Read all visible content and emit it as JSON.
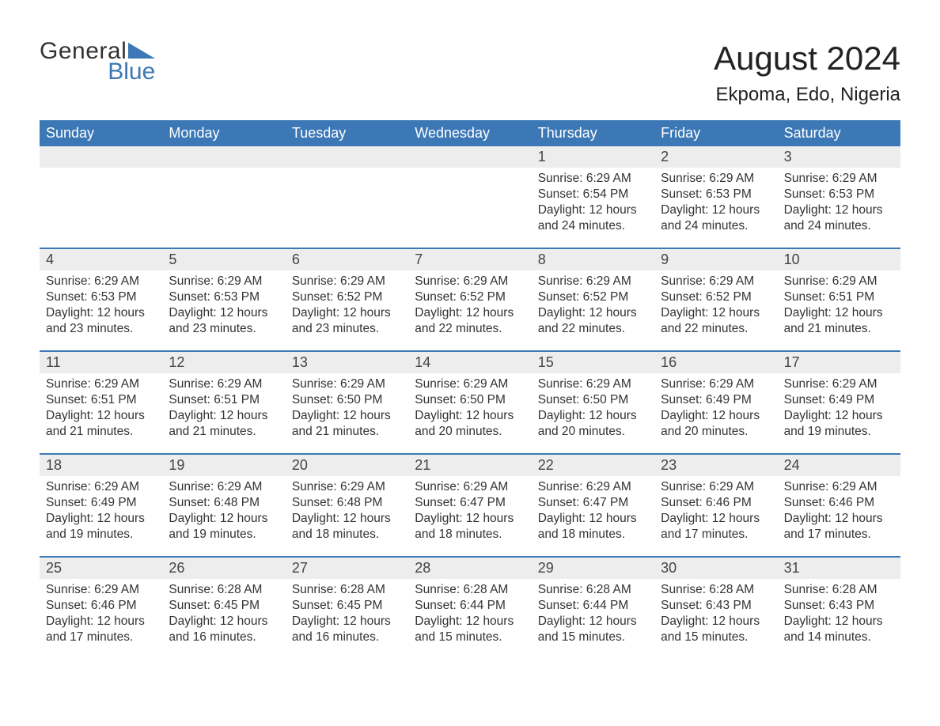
{
  "brand": {
    "word1": "General",
    "word2": "Blue",
    "word1_color": "#333333",
    "word2_color": "#3b78b5",
    "triangle_color": "#3b78b5"
  },
  "title": "August 2024",
  "location": "Ekpoma, Edo, Nigeria",
  "colors": {
    "header_bg": "#3b78b5",
    "header_text": "#ffffff",
    "row_divider": "#3b78b5",
    "daynum_bg": "#ededed",
    "body_text": "#333333",
    "page_bg": "#ffffff"
  },
  "layout": {
    "columns": 7,
    "rows": 5,
    "start_weekday": "Sunday"
  },
  "weekdays": [
    "Sunday",
    "Monday",
    "Tuesday",
    "Wednesday",
    "Thursday",
    "Friday",
    "Saturday"
  ],
  "labels": {
    "sunrise": "Sunrise",
    "sunset": "Sunset",
    "daylight": "Daylight"
  },
  "weeks": [
    [
      {
        "blank": true
      },
      {
        "blank": true
      },
      {
        "blank": true
      },
      {
        "blank": true
      },
      {
        "day": "1",
        "sunrise": "6:29 AM",
        "sunset": "6:54 PM",
        "daylight": "12 hours and 24 minutes."
      },
      {
        "day": "2",
        "sunrise": "6:29 AM",
        "sunset": "6:53 PM",
        "daylight": "12 hours and 24 minutes."
      },
      {
        "day": "3",
        "sunrise": "6:29 AM",
        "sunset": "6:53 PM",
        "daylight": "12 hours and 24 minutes."
      }
    ],
    [
      {
        "day": "4",
        "sunrise": "6:29 AM",
        "sunset": "6:53 PM",
        "daylight": "12 hours and 23 minutes."
      },
      {
        "day": "5",
        "sunrise": "6:29 AM",
        "sunset": "6:53 PM",
        "daylight": "12 hours and 23 minutes."
      },
      {
        "day": "6",
        "sunrise": "6:29 AM",
        "sunset": "6:52 PM",
        "daylight": "12 hours and 23 minutes."
      },
      {
        "day": "7",
        "sunrise": "6:29 AM",
        "sunset": "6:52 PM",
        "daylight": "12 hours and 22 minutes."
      },
      {
        "day": "8",
        "sunrise": "6:29 AM",
        "sunset": "6:52 PM",
        "daylight": "12 hours and 22 minutes."
      },
      {
        "day": "9",
        "sunrise": "6:29 AM",
        "sunset": "6:52 PM",
        "daylight": "12 hours and 22 minutes."
      },
      {
        "day": "10",
        "sunrise": "6:29 AM",
        "sunset": "6:51 PM",
        "daylight": "12 hours and 21 minutes."
      }
    ],
    [
      {
        "day": "11",
        "sunrise": "6:29 AM",
        "sunset": "6:51 PM",
        "daylight": "12 hours and 21 minutes."
      },
      {
        "day": "12",
        "sunrise": "6:29 AM",
        "sunset": "6:51 PM",
        "daylight": "12 hours and 21 minutes."
      },
      {
        "day": "13",
        "sunrise": "6:29 AM",
        "sunset": "6:50 PM",
        "daylight": "12 hours and 21 minutes."
      },
      {
        "day": "14",
        "sunrise": "6:29 AM",
        "sunset": "6:50 PM",
        "daylight": "12 hours and 20 minutes."
      },
      {
        "day": "15",
        "sunrise": "6:29 AM",
        "sunset": "6:50 PM",
        "daylight": "12 hours and 20 minutes."
      },
      {
        "day": "16",
        "sunrise": "6:29 AM",
        "sunset": "6:49 PM",
        "daylight": "12 hours and 20 minutes."
      },
      {
        "day": "17",
        "sunrise": "6:29 AM",
        "sunset": "6:49 PM",
        "daylight": "12 hours and 19 minutes."
      }
    ],
    [
      {
        "day": "18",
        "sunrise": "6:29 AM",
        "sunset": "6:49 PM",
        "daylight": "12 hours and 19 minutes."
      },
      {
        "day": "19",
        "sunrise": "6:29 AM",
        "sunset": "6:48 PM",
        "daylight": "12 hours and 19 minutes."
      },
      {
        "day": "20",
        "sunrise": "6:29 AM",
        "sunset": "6:48 PM",
        "daylight": "12 hours and 18 minutes."
      },
      {
        "day": "21",
        "sunrise": "6:29 AM",
        "sunset": "6:47 PM",
        "daylight": "12 hours and 18 minutes."
      },
      {
        "day": "22",
        "sunrise": "6:29 AM",
        "sunset": "6:47 PM",
        "daylight": "12 hours and 18 minutes."
      },
      {
        "day": "23",
        "sunrise": "6:29 AM",
        "sunset": "6:46 PM",
        "daylight": "12 hours and 17 minutes."
      },
      {
        "day": "24",
        "sunrise": "6:29 AM",
        "sunset": "6:46 PM",
        "daylight": "12 hours and 17 minutes."
      }
    ],
    [
      {
        "day": "25",
        "sunrise": "6:29 AM",
        "sunset": "6:46 PM",
        "daylight": "12 hours and 17 minutes."
      },
      {
        "day": "26",
        "sunrise": "6:28 AM",
        "sunset": "6:45 PM",
        "daylight": "12 hours and 16 minutes."
      },
      {
        "day": "27",
        "sunrise": "6:28 AM",
        "sunset": "6:45 PM",
        "daylight": "12 hours and 16 minutes."
      },
      {
        "day": "28",
        "sunrise": "6:28 AM",
        "sunset": "6:44 PM",
        "daylight": "12 hours and 15 minutes."
      },
      {
        "day": "29",
        "sunrise": "6:28 AM",
        "sunset": "6:44 PM",
        "daylight": "12 hours and 15 minutes."
      },
      {
        "day": "30",
        "sunrise": "6:28 AM",
        "sunset": "6:43 PM",
        "daylight": "12 hours and 15 minutes."
      },
      {
        "day": "31",
        "sunrise": "6:28 AM",
        "sunset": "6:43 PM",
        "daylight": "12 hours and 14 minutes."
      }
    ]
  ]
}
